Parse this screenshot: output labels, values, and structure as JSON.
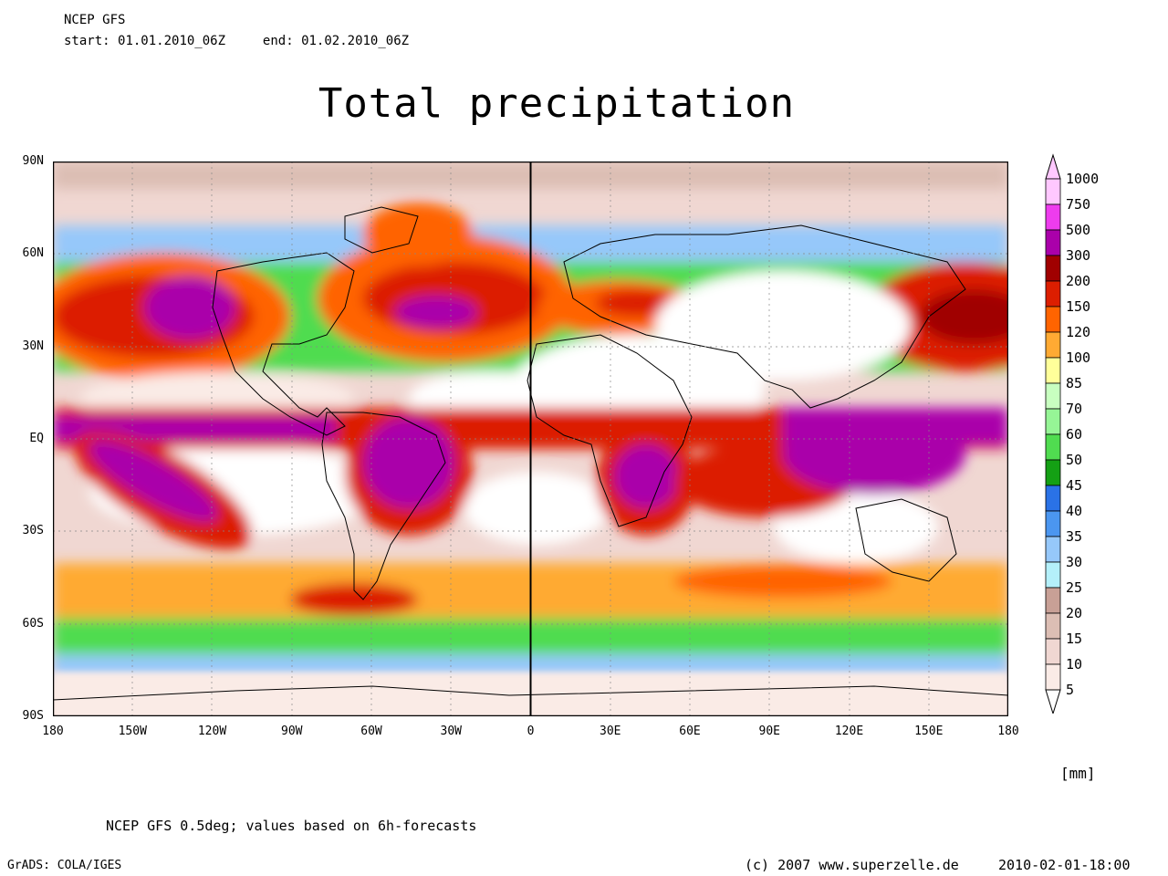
{
  "header": {
    "source": "NCEP GFS",
    "start_label": "start:",
    "start_value": "01.01.2010_06Z",
    "end_label": "end:",
    "end_value": "01.02.2010_06Z"
  },
  "title": "Total precipitation",
  "axes": {
    "lat_labels": [
      "90N",
      "60N",
      "30N",
      "EQ",
      "30S",
      "60S",
      "90S"
    ],
    "lon_labels": [
      "180",
      "150W",
      "120W",
      "90W",
      "60W",
      "30W",
      "0",
      "30E",
      "60E",
      "90E",
      "120E",
      "150E",
      "180"
    ],
    "lat_range": [
      -90,
      90
    ],
    "lon_range": [
      -180,
      180
    ],
    "grid": true
  },
  "legend": {
    "unit": "[mm]",
    "levels": [
      "1000",
      "750",
      "500",
      "300",
      "200",
      "150",
      "120",
      "100",
      "85",
      "70",
      "60",
      "50",
      "45",
      "40",
      "35",
      "30",
      "25",
      "20",
      "15",
      "10",
      "5"
    ],
    "colors": [
      "#ffc8ff",
      "#ee3cee",
      "#aa00aa",
      "#a00000",
      "#dc1e00",
      "#ff6400",
      "#ffaa33",
      "#ffff9a",
      "#c8ffc0",
      "#96f596",
      "#50dc50",
      "#14a014",
      "#2a72e6",
      "#4b96f0",
      "#96c8fa",
      "#b4f0fa",
      "#c8a096",
      "#dcbeb4",
      "#f0d7d2",
      "#faebe6",
      "#ffffff"
    ],
    "placement": "right"
  },
  "footer": {
    "note": "NCEP GFS 0.5deg; values based on 6h-forecasts",
    "grads": "GrADS: COLA/IGES",
    "copyright": "(c) 2007 www.superzelle.de",
    "timestamp": "2010-02-01-18:00"
  }
}
